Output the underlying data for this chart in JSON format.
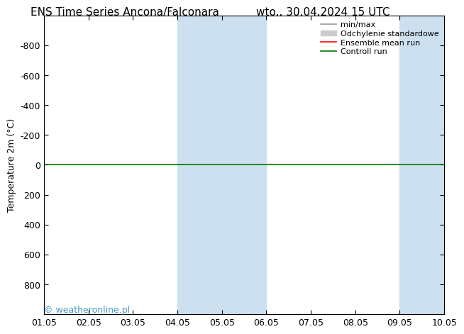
{
  "title_left": "ENS Time Series Ancona/Falconara",
  "title_right": "wto.. 30.04.2024 15 UTC",
  "ylabel": "Temperature 2m (°C)",
  "xlim_dates": [
    "01.05",
    "02.05",
    "03.05",
    "04.05",
    "05.05",
    "06.05",
    "07.05",
    "08.05",
    "09.05",
    "10.05"
  ],
  "ylim": [
    -1000,
    1000
  ],
  "ylim_display": [
    -1000,
    1000
  ],
  "yticks": [
    -800,
    -600,
    -400,
    -200,
    0,
    200,
    400,
    600,
    800
  ],
  "background_color": "#ffffff",
  "plot_bg_color": "#ffffff",
  "shaded_regions": [
    {
      "xstart": 3,
      "xend": 5,
      "color": "#cce0f0"
    },
    {
      "xstart": 8,
      "xend": 9,
      "color": "#cce0f0"
    }
  ],
  "horizontal_line_y": 0,
  "control_run_color": "#007700",
  "ensemble_mean_color": "#ff0000",
  "min_max_color": "#999999",
  "std_dev_color": "#cccccc",
  "watermark_text": "© weatheronline.pl",
  "watermark_color": "#4499cc",
  "watermark_fontsize": 9,
  "title_fontsize": 11,
  "axis_fontsize": 9,
  "ylabel_fontsize": 9,
  "legend_items": [
    {
      "label": "min/max",
      "color": "#999999",
      "lw": 1.2,
      "style": "-"
    },
    {
      "label": "Odchylenie standardowe",
      "color": "#cccccc",
      "lw": 8,
      "style": "-"
    },
    {
      "label": "Ensemble mean run",
      "color": "#ff0000",
      "lw": 1.2,
      "style": "-"
    },
    {
      "label": "Controll run",
      "color": "#007700",
      "lw": 1.2,
      "style": "-"
    }
  ]
}
